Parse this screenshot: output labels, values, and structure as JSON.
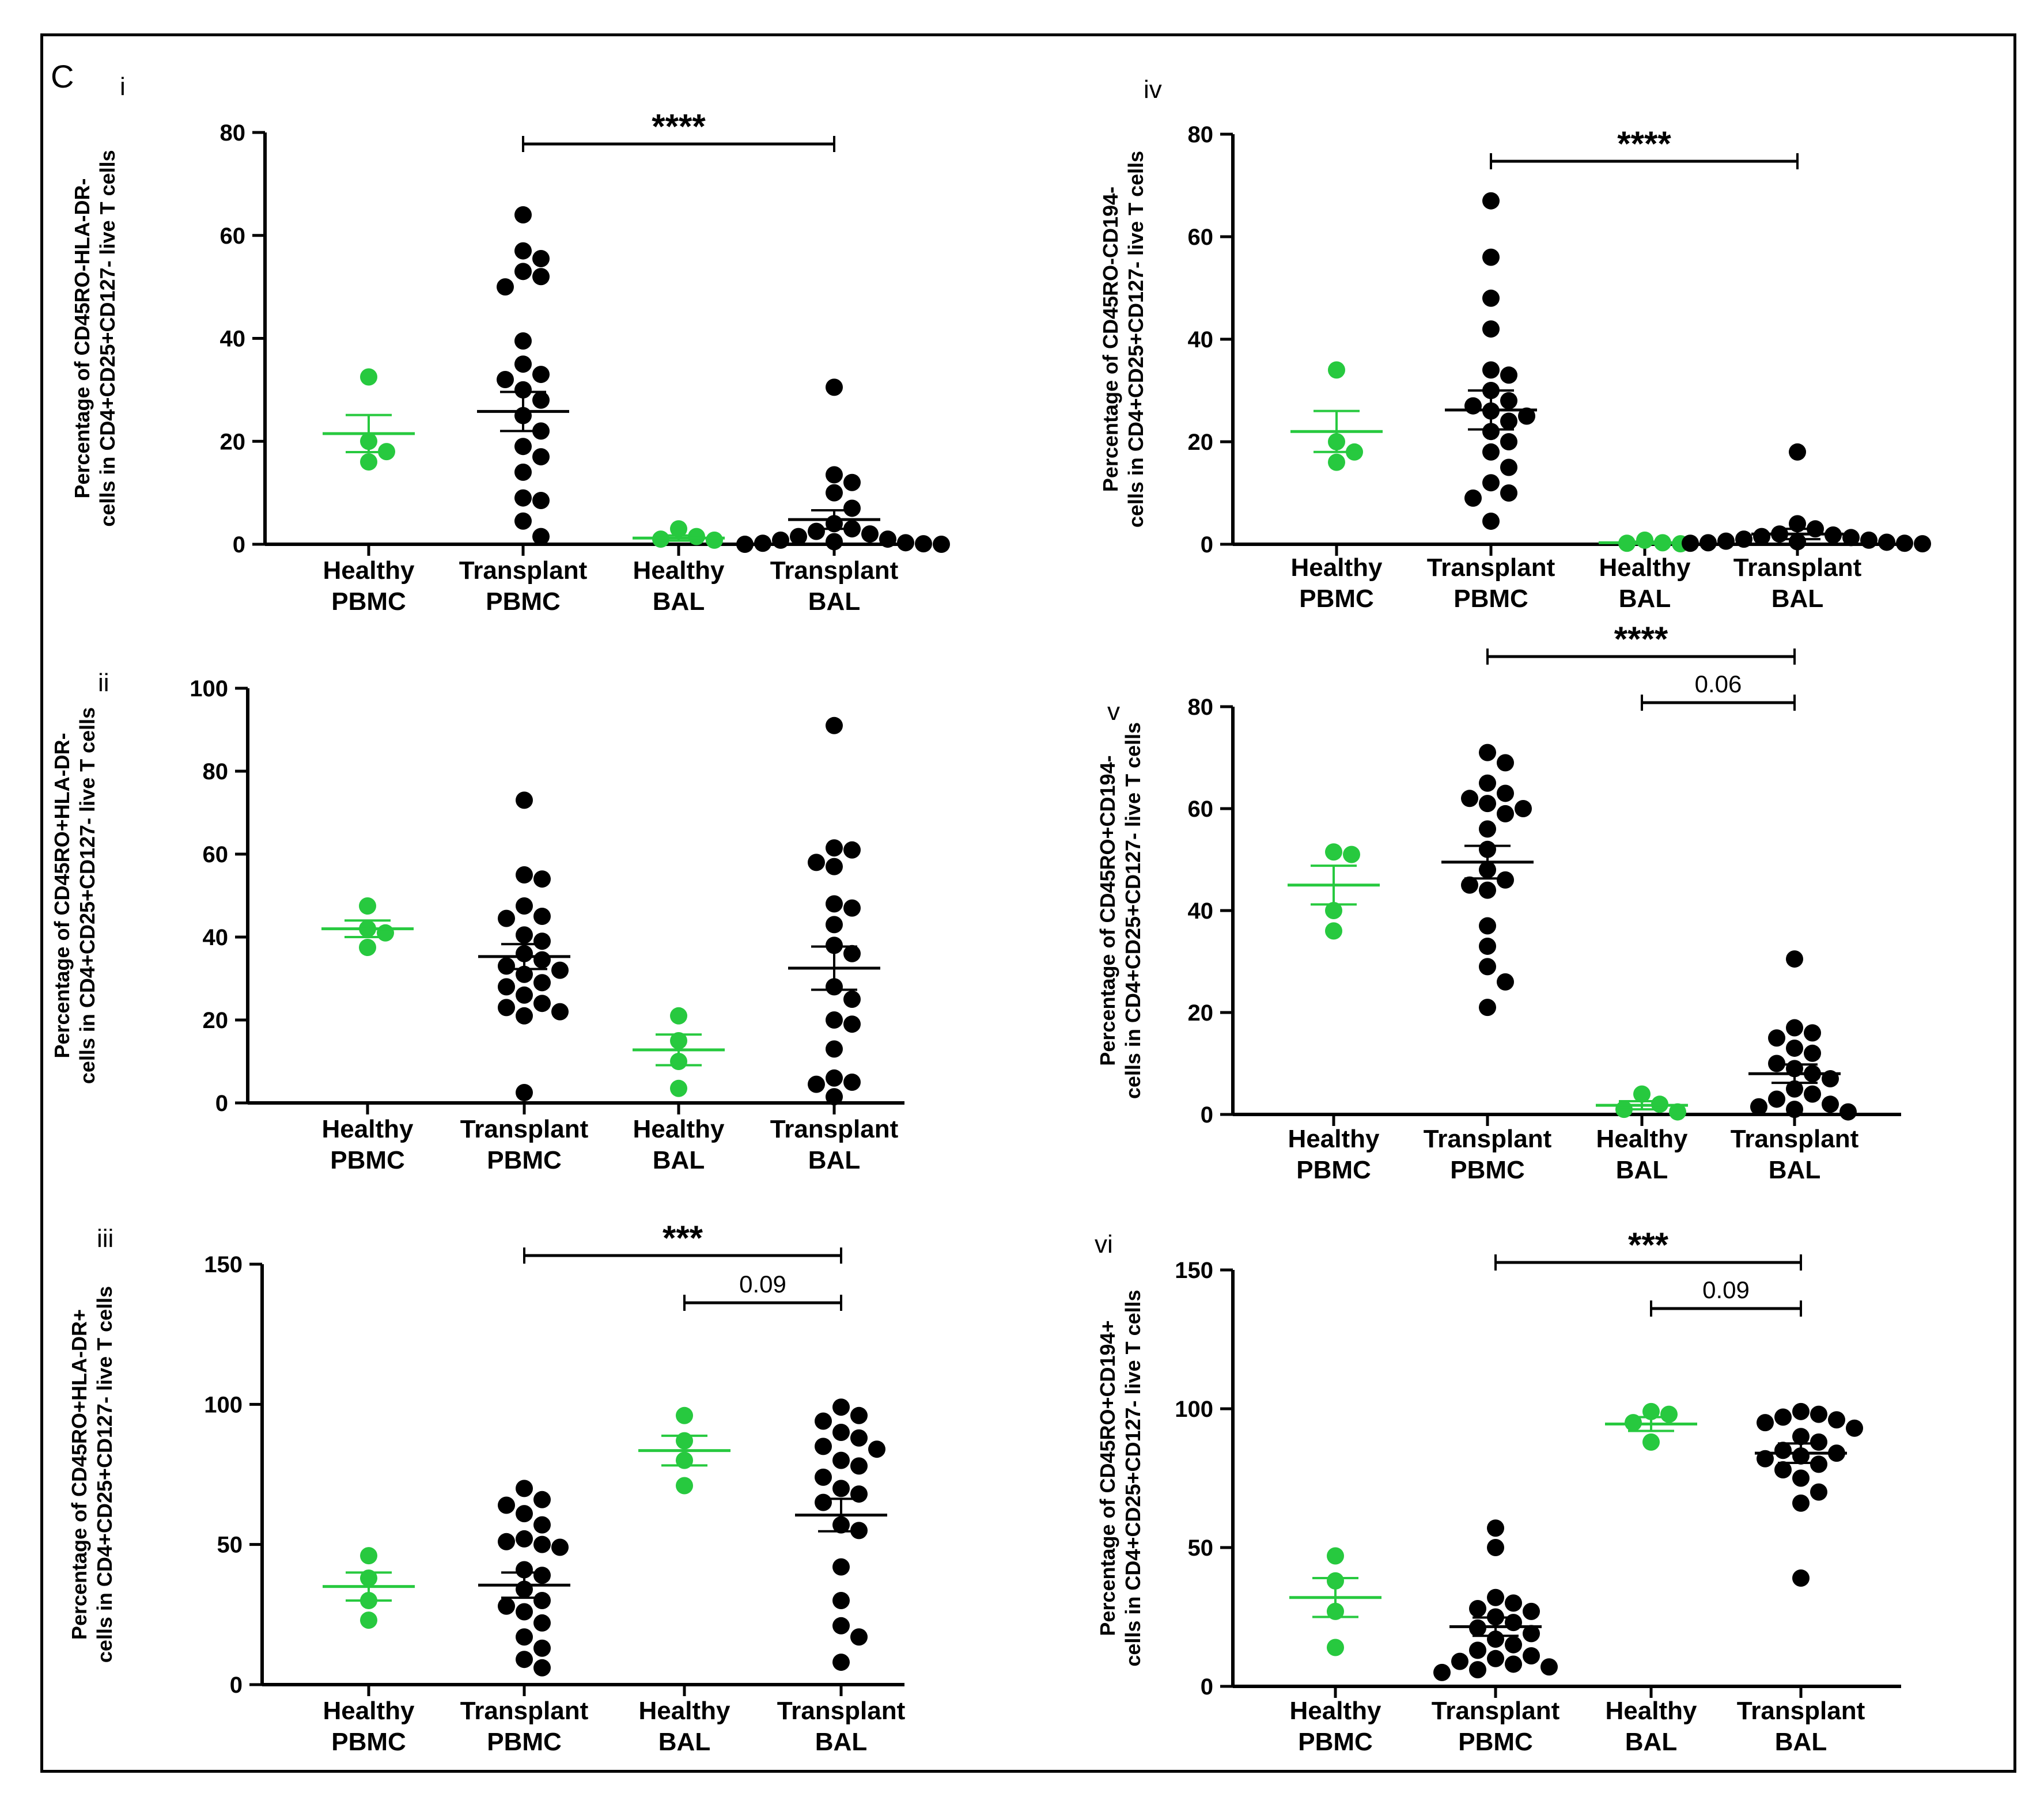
{
  "figure": {
    "panel_letter": "C"
  },
  "colors": {
    "healthy": "#27c93f",
    "transplant": "#000000",
    "axis": "#000000"
  },
  "chart_data": [
    {
      "id": "i",
      "type": "scatter",
      "label": "i",
      "ylabel_lines": [
        "Percentage of CD45RO-HLA-DR-",
        "cells in CD4+CD25+CD127- live T cells"
      ],
      "categories": [
        [
          "Healthy",
          "PBMC"
        ],
        [
          "Transplant",
          "PBMC"
        ],
        [
          "Healthy",
          "BAL"
        ],
        [
          "Transplant",
          "BAL"
        ]
      ],
      "yticks": [
        0,
        20,
        40,
        60,
        80
      ],
      "ylim": [
        0,
        80
      ],
      "series": [
        {
          "values": [
            32.5,
            20,
            18,
            16
          ],
          "mean": 21.5,
          "sem": 3.6
        },
        {
          "values": [
            64,
            57,
            55.5,
            53,
            52,
            50,
            39.5,
            35,
            33,
            32,
            30,
            28,
            25,
            22,
            19,
            17,
            14,
            9,
            8.5,
            4.5,
            1.5
          ],
          "mean": 25.8,
          "sem": 3.8
        },
        {
          "values": [
            3,
            1.5,
            1,
            0.8
          ],
          "mean": 1.2,
          "sem": 0.5
        },
        {
          "values": [
            30.5,
            13.5,
            12,
            10,
            7,
            4,
            3,
            2.5,
            2,
            1.5,
            1,
            0.8,
            0.5,
            0.3,
            0.2,
            0.1,
            0,
            0
          ],
          "mean": 4.8,
          "sem": 1.8
        }
      ],
      "comparisons": [
        {
          "from": 1,
          "to": 3,
          "label": "****",
          "kind": "stars"
        }
      ]
    },
    {
      "id": "ii",
      "type": "scatter",
      "label": "ii",
      "ylabel_lines": [
        "Percentage of CD45RO+HLA-DR-",
        "cells in CD4+CD25+CD127- live T cells"
      ],
      "categories": [
        [
          "Healthy",
          "PBMC"
        ],
        [
          "Transplant",
          "PBMC"
        ],
        [
          "Healthy",
          "BAL"
        ],
        [
          "Transplant",
          "BAL"
        ]
      ],
      "yticks": [
        0,
        20,
        40,
        60,
        80,
        100
      ],
      "ylim": [
        0,
        100
      ],
      "series": [
        {
          "values": [
            47.5,
            42,
            41,
            37.5
          ],
          "mean": 42,
          "sem": 2
        },
        {
          "values": [
            73,
            55,
            54,
            47.5,
            45,
            44.5,
            40.5,
            39,
            36,
            34.5,
            33,
            32,
            31,
            29,
            28,
            26,
            24,
            23,
            22,
            21,
            2.5
          ],
          "mean": 35.3,
          "sem": 3
        },
        {
          "values": [
            21,
            15,
            10,
            3.5
          ],
          "mean": 12.8,
          "sem": 3.7
        },
        {
          "values": [
            91,
            61.5,
            61,
            58,
            57,
            48,
            47,
            43,
            38,
            36,
            28,
            25,
            20,
            19,
            13,
            6,
            5,
            4.5,
            1.5
          ],
          "mean": 32.5,
          "sem": 5.2
        }
      ],
      "comparisons": []
    },
    {
      "id": "iii",
      "type": "scatter",
      "label": "iii",
      "ylabel_lines": [
        "Percentage of CD45RO+HLA-DR+",
        "cells in CD4+CD25+CD127- live T cells"
      ],
      "categories": [
        [
          "Healthy",
          "PBMC"
        ],
        [
          "Transplant",
          "PBMC"
        ],
        [
          "Healthy",
          "BAL"
        ],
        [
          "Transplant",
          "BAL"
        ]
      ],
      "yticks": [
        0,
        50,
        100,
        150
      ],
      "ylim": [
        0,
        150
      ],
      "series": [
        {
          "values": [
            46,
            38,
            30,
            23
          ],
          "mean": 35,
          "sem": 5
        },
        {
          "values": [
            70,
            66,
            64,
            61,
            57,
            52,
            51,
            50,
            49,
            41,
            39,
            34,
            30,
            28,
            26,
            22,
            17,
            13,
            9,
            6
          ],
          "mean": 35.5,
          "sem": 4.5
        },
        {
          "values": [
            96,
            87,
            80,
            71
          ],
          "mean": 83.5,
          "sem": 5.3
        },
        {
          "values": [
            99,
            96,
            94,
            90,
            88,
            85,
            84,
            80,
            78,
            74,
            70,
            68,
            65,
            57,
            55,
            42,
            30,
            21,
            17,
            8
          ],
          "mean": 60.5,
          "sem": 5.8
        }
      ],
      "comparisons": [
        {
          "from": 1,
          "to": 3,
          "label": "***",
          "kind": "stars"
        },
        {
          "from": 2,
          "to": 3,
          "label": "0.09",
          "kind": "p"
        }
      ]
    },
    {
      "id": "iv",
      "type": "scatter",
      "label": "iv",
      "ylabel_lines": [
        "Percentage of CD45RO-CD194-",
        "cells in CD4+CD25+CD127- live T cells"
      ],
      "categories": [
        [
          "Healthy",
          "PBMC"
        ],
        [
          "Transplant",
          "PBMC"
        ],
        [
          "Healthy",
          "BAL"
        ],
        [
          "Transplant",
          "BAL"
        ]
      ],
      "yticks": [
        0,
        20,
        40,
        60,
        80
      ],
      "ylim": [
        0,
        80
      ],
      "series": [
        {
          "values": [
            34,
            20,
            18,
            16
          ],
          "mean": 22,
          "sem": 4
        },
        {
          "values": [
            67,
            56,
            48,
            42,
            34,
            33,
            30,
            28,
            27,
            26,
            25,
            24,
            22,
            20,
            18,
            15,
            12,
            10,
            9,
            4.5
          ],
          "mean": 26.2,
          "sem": 3.8
        },
        {
          "values": [
            0.8,
            0.3,
            0.2,
            0.1
          ],
          "mean": 0.3,
          "sem": 0.2
        },
        {
          "values": [
            18,
            4,
            3,
            2,
            1.8,
            1.5,
            1.3,
            1,
            0.8,
            0.6,
            0.5,
            0.4,
            0.3,
            0.2,
            0.2,
            0.1
          ],
          "mean": 2,
          "sem": 1
        }
      ],
      "comparisons": [
        {
          "from": 1,
          "to": 3,
          "label": "****",
          "kind": "stars"
        }
      ]
    },
    {
      "id": "v",
      "type": "scatter",
      "label": "v",
      "ylabel_lines": [
        "Percentage of CD45RO+CD194-",
        "cells in CD4+CD25+CD127- live T cells"
      ],
      "categories": [
        [
          "Healthy",
          "PBMC"
        ],
        [
          "Transplant",
          "PBMC"
        ],
        [
          "Healthy",
          "BAL"
        ],
        [
          "Transplant",
          "BAL"
        ]
      ],
      "yticks": [
        0,
        20,
        40,
        60,
        80
      ],
      "ylim": [
        0,
        80
      ],
      "series": [
        {
          "values": [
            51.5,
            51,
            40,
            36
          ],
          "mean": 45,
          "sem": 3.8
        },
        {
          "values": [
            71,
            69,
            65,
            63,
            62,
            61,
            60,
            59,
            56,
            52,
            48,
            46,
            45,
            44,
            37,
            33,
            29,
            26,
            21
          ],
          "mean": 49.5,
          "sem": 3.2
        },
        {
          "values": [
            4,
            2,
            1,
            0.5
          ],
          "mean": 1.8,
          "sem": 0.8
        },
        {
          "values": [
            30.5,
            17,
            16,
            15,
            13,
            12,
            10,
            9,
            8,
            7,
            5,
            4,
            3,
            2,
            1.5,
            1,
            0.5
          ],
          "mean": 8,
          "sem": 1.8
        }
      ],
      "comparisons": [
        {
          "from": 1,
          "to": 3,
          "label": "****",
          "kind": "stars"
        },
        {
          "from": 2,
          "to": 3,
          "label": "0.06",
          "kind": "p"
        }
      ]
    },
    {
      "id": "vi",
      "type": "scatter",
      "label": "vi",
      "ylabel_lines": [
        "Percentage of CD45RO+CD194+",
        "cells in CD4+CD25+CD127- live T cells"
      ],
      "categories": [
        [
          "Healthy",
          "PBMC"
        ],
        [
          "Transplant",
          "PBMC"
        ],
        [
          "Healthy",
          "BAL"
        ],
        [
          "Transplant",
          "BAL"
        ]
      ],
      "yticks": [
        0,
        50,
        100,
        150
      ],
      "ylim": [
        0,
        150
      ],
      "series": [
        {
          "values": [
            47,
            38,
            27,
            14
          ],
          "mean": 32,
          "sem": 7
        },
        {
          "values": [
            57,
            50,
            32,
            30,
            28,
            27,
            25,
            23,
            21,
            19,
            17,
            15,
            13,
            11,
            10,
            9,
            8,
            7,
            6,
            5
          ],
          "mean": 21.5,
          "sem": 3.3
        },
        {
          "values": [
            99,
            98,
            95,
            88
          ],
          "mean": 94.5,
          "sem": 2.5
        },
        {
          "values": [
            99,
            98,
            97,
            96,
            95,
            93,
            90,
            88,
            85,
            84,
            83,
            82,
            80,
            78,
            75,
            70,
            66,
            39
          ],
          "mean": 84,
          "sem": 3.5
        }
      ],
      "comparisons": [
        {
          "from": 1,
          "to": 3,
          "label": "***",
          "kind": "stars"
        },
        {
          "from": 2,
          "to": 3,
          "label": "0.09",
          "kind": "p"
        }
      ]
    }
  ]
}
